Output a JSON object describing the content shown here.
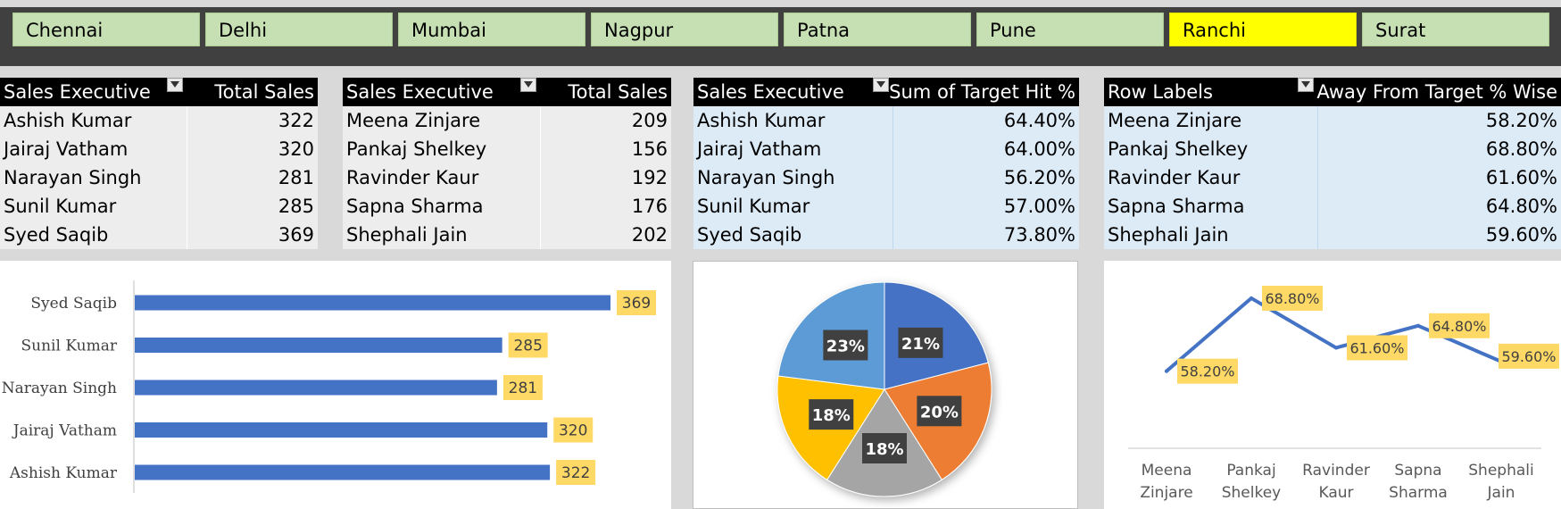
{
  "slicer": {
    "cities": [
      "Chennai",
      "Delhi",
      "Mumbai",
      "Nagpur",
      "Patna",
      "Pune",
      "Ranchi",
      "Surat"
    ],
    "selected": "Ranchi",
    "colors": {
      "normal": "#c6e0b4",
      "selected": "#ffff00"
    }
  },
  "pivot_total_sales_1": {
    "header_col1": "Sales Executive",
    "header_col2": "Total Sales",
    "rows": [
      {
        "name": "Ashish Kumar",
        "value": "322"
      },
      {
        "name": "Jairaj Vatham",
        "value": "320"
      },
      {
        "name": "Narayan Singh",
        "value": "281"
      },
      {
        "name": "Sunil Kumar",
        "value": "285"
      },
      {
        "name": "Syed Saqib",
        "value": "369"
      }
    ]
  },
  "pivot_total_sales_2": {
    "header_col1": "Sales Executive",
    "header_col2": "Total Sales",
    "rows": [
      {
        "name": "Meena Zinjare",
        "value": "209"
      },
      {
        "name": "Pankaj Shelkey",
        "value": "156"
      },
      {
        "name": "Ravinder Kaur",
        "value": "192"
      },
      {
        "name": "Sapna Sharma",
        "value": "176"
      },
      {
        "name": "Shephali Jain",
        "value": "202"
      }
    ]
  },
  "pivot_target_hit": {
    "header_col1": "Sales Executive",
    "header_col2": "Sum of Target Hit %",
    "rows": [
      {
        "name": "Ashish Kumar",
        "value": "64.40%"
      },
      {
        "name": "Jairaj Vatham",
        "value": "64.00%"
      },
      {
        "name": "Narayan Singh",
        "value": "56.20%"
      },
      {
        "name": "Sunil Kumar",
        "value": "57.00%"
      },
      {
        "name": "Syed Saqib",
        "value": "73.80%"
      }
    ]
  },
  "pivot_away_from_target": {
    "header_col1": "Row Labels",
    "header_col2": "Away From Target % Wise",
    "rows": [
      {
        "name": "Meena Zinjare",
        "value": "58.20%"
      },
      {
        "name": "Pankaj Shelkey",
        "value": "68.80%"
      },
      {
        "name": "Ravinder Kaur",
        "value": "61.60%"
      },
      {
        "name": "Sapna Sharma",
        "value": "64.80%"
      },
      {
        "name": "Shephali Jain",
        "value": "59.60%"
      }
    ]
  },
  "chart_data": [
    {
      "type": "bar",
      "orientation": "horizontal",
      "categories": [
        "Syed Saqib",
        "Sunil Kumar",
        "Narayan Singh",
        "Jairaj Vatham",
        "Ashish Kumar"
      ],
      "values": [
        369,
        285,
        281,
        320,
        322
      ],
      "data_labels": [
        "369",
        "285",
        "281",
        "320",
        "322"
      ],
      "xlim": [
        0,
        369
      ],
      "bar_color": "#4472c4",
      "label_bg": "#ffd966"
    },
    {
      "type": "pie",
      "slices": [
        {
          "label": "21%",
          "value": 21,
          "color": "#4472c4"
        },
        {
          "label": "20%",
          "value": 20,
          "color": "#ed7d31"
        },
        {
          "label": "18%",
          "value": 18,
          "color": "#a5a5a5"
        },
        {
          "label": "18%",
          "value": 18,
          "color": "#ffc000"
        },
        {
          "label": "23%",
          "value": 23,
          "color": "#5b9bd5"
        }
      ]
    },
    {
      "type": "line",
      "categories": [
        "Meena Zinjare",
        "Pankaj Shelkey",
        "Ravinder Kaur",
        "Sapna Sharma",
        "Shephali Jain"
      ],
      "category_lines": [
        [
          "Meena",
          "Zinjare"
        ],
        [
          "Pankaj",
          "Shelkey"
        ],
        [
          "Ravinder",
          "Kaur"
        ],
        [
          "Sapna",
          "Sharma"
        ],
        [
          "Shephali",
          "Jain"
        ]
      ],
      "values": [
        58.2,
        68.8,
        61.6,
        64.8,
        59.6
      ],
      "data_labels": [
        "58.20%",
        "68.80%",
        "61.60%",
        "64.80%",
        "59.60%"
      ],
      "ylim": [
        47,
        71
      ],
      "line_color": "#4472c4",
      "label_bg": "#ffd966"
    }
  ]
}
